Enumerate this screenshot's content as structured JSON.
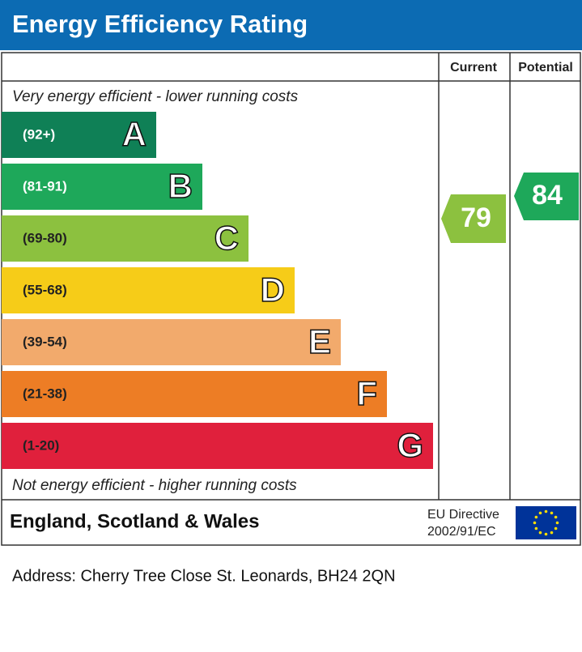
{
  "header": {
    "title": "Energy Efficiency Rating"
  },
  "columns": {
    "current": "Current",
    "potential": "Potential"
  },
  "top_note": "Very energy efficient - lower running costs",
  "bottom_note": "Not energy efficient - higher running costs",
  "bands": [
    {
      "range": "(92+)",
      "letter": "A",
      "color": "#0f8056"
    },
    {
      "range": "(81-91)",
      "letter": "B",
      "color": "#1ea85a"
    },
    {
      "range": "(69-80)",
      "letter": "C",
      "color": "#8cc13f"
    },
    {
      "range": "(55-68)",
      "letter": "D",
      "color": "#f6cc18"
    },
    {
      "range": "(39-54)",
      "letter": "E",
      "color": "#f2aa6c"
    },
    {
      "range": "(21-38)",
      "letter": "F",
      "color": "#ed7d25"
    },
    {
      "range": "(1-20)",
      "letter": "G",
      "color": "#e0203c"
    }
  ],
  "current": {
    "value": "79",
    "color": "#8cc13f"
  },
  "potential": {
    "value": "84",
    "color": "#1ea85a"
  },
  "footer": {
    "region": "England, Scotland & Wales",
    "directive_line1": "EU Directive",
    "directive_line2": "2002/91/EC"
  },
  "address": "Address: Cherry Tree Close St. Leonards, BH24 2QN"
}
